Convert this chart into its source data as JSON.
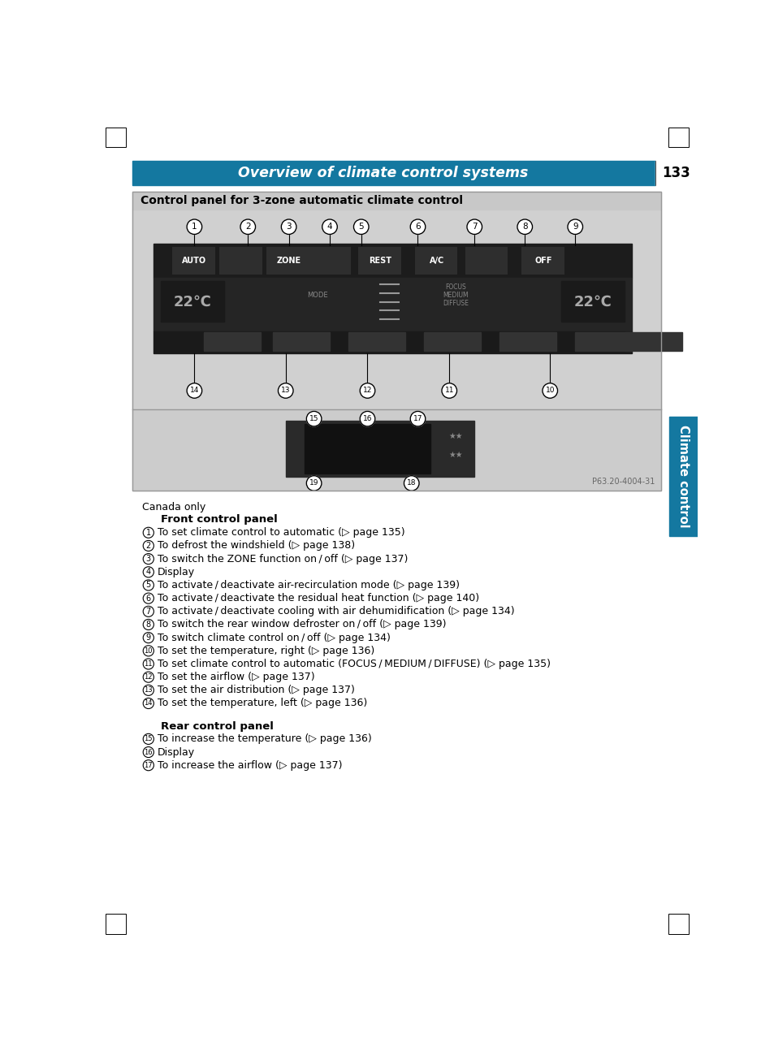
{
  "page_bg": "#ffffff",
  "header_bg": "#1478a0",
  "header_text": "Overview of climate control systems",
  "header_page_num": "133",
  "header_text_color": "#ffffff",
  "side_tab_text": "Climate control",
  "side_tab_bg": "#1478a0",
  "box_title": "Control panel for 3-zone automatic climate control",
  "box_title_bg": "#c8c8c8",
  "box_bg": "#d8d8d8",
  "front_panel_bg": "#d0d0d0",
  "rear_panel_bg": "#d0d0d0",
  "panel_dark": "#1a1a1a",
  "panel_mid": "#333333",
  "panel_btn": "#2e2e2e",
  "canada_only": "Canada only",
  "front_panel_heading": "Front control panel",
  "rear_panel_heading": "Rear control panel",
  "items_front": [
    {
      "num": "1",
      "text": "To set climate control to automatic (▷ page 135)"
    },
    {
      "num": "2",
      "text": "To defrost the windshield (▷ page 138)"
    },
    {
      "num": "3",
      "text": "To switch the ZONE function on / off (▷ page 137)"
    },
    {
      "num": "4",
      "text": "Display"
    },
    {
      "num": "5",
      "text": "To activate / deactivate air-recirculation mode (▷ page 139)"
    },
    {
      "num": "6",
      "text": "To activate / deactivate the residual heat function (▷ page 140)"
    },
    {
      "num": "7",
      "text": "To activate / deactivate cooling with air dehumidification (▷ page 134)"
    },
    {
      "num": "8",
      "text": "To switch the rear window defroster on / off (▷ page 139)"
    },
    {
      "num": "9",
      "text": "To switch climate control on / off (▷ page 134)"
    },
    {
      "num": "10",
      "text": "To set the temperature, right (▷ page 136)"
    },
    {
      "num": "11",
      "text": "To set climate control to automatic (FOCUS / MEDIUM / DIFFUSE) (▷ page 135)"
    },
    {
      "num": "12",
      "text": "To set the airflow (▷ page 137)"
    },
    {
      "num": "13",
      "text": "To set the air distribution (▷ page 137)"
    },
    {
      "num": "14",
      "text": "To set the temperature, left (▷ page 136)"
    }
  ],
  "items_rear": [
    {
      "num": "15",
      "text": "To increase the temperature (▷ page 136)"
    },
    {
      "num": "16",
      "text": "Display"
    },
    {
      "num": "17",
      "text": "To increase the airflow (▷ page 137)"
    }
  ],
  "photo_ref": "P63.20-4004-31"
}
